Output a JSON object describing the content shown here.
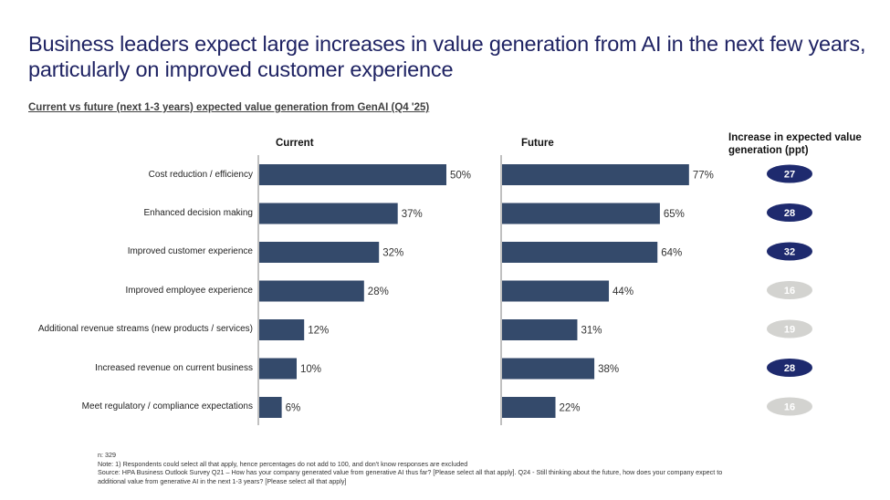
{
  "title": "Business leaders expect large increases in value generation from AI in the next few years, particularly on improved customer experience",
  "subtitle": "Current vs future (next 1-3 years) expected value generation from GenAI (Q4 '25)",
  "colors": {
    "bar": "#344a6b",
    "pill_highlight": "#1e2a6e",
    "pill_muted": "#d3d3d0",
    "axis": "#808080"
  },
  "footnotes": {
    "n": "n: 329",
    "note": "Note: 1) Respondents could select all that apply, hence percentages do not add to 100, and don't know responses are excluded",
    "source_line1": "Source: HPA Business Outlook Survey Q21 – How has your company generated value from generative AI thus far? [Please select all that apply]. Q24 - Still thinking about the future, how does your company expect to",
    "source_line2": "additional value from generative AI in the next 1-3 years? [Please select all that apply]"
  },
  "chart_data": {
    "type": "bar",
    "orientation": "horizontal",
    "title": "Current vs future (next 1-3 years) expected value generation from GenAI (Q4 '25)",
    "categories": [
      "Cost reduction / efficiency",
      "Enhanced decision making",
      "Improved customer experience",
      "Improved employee experience",
      "Additional revenue streams (new products / services)",
      "Increased revenue on current business",
      "Meet regulatory / compliance expectations"
    ],
    "series": [
      {
        "name": "Current",
        "values": [
          50,
          37,
          32,
          28,
          12,
          10,
          6
        ],
        "labels": [
          "50%",
          "37%",
          "32%",
          "28%",
          "12%",
          "10%",
          "6%"
        ]
      },
      {
        "name": "Future",
        "values": [
          77,
          65,
          64,
          44,
          31,
          38,
          22
        ],
        "labels": [
          "77%",
          "65%",
          "64%",
          "44%",
          "31%",
          "38%",
          "22%"
        ]
      }
    ],
    "increase": {
      "header": "Increase in expected value generation (ppt)",
      "values": [
        27,
        28,
        32,
        16,
        19,
        28,
        16
      ],
      "highlighted": [
        true,
        true,
        true,
        false,
        false,
        true,
        false
      ]
    },
    "unit": "%",
    "grid": false,
    "legend": "none"
  }
}
